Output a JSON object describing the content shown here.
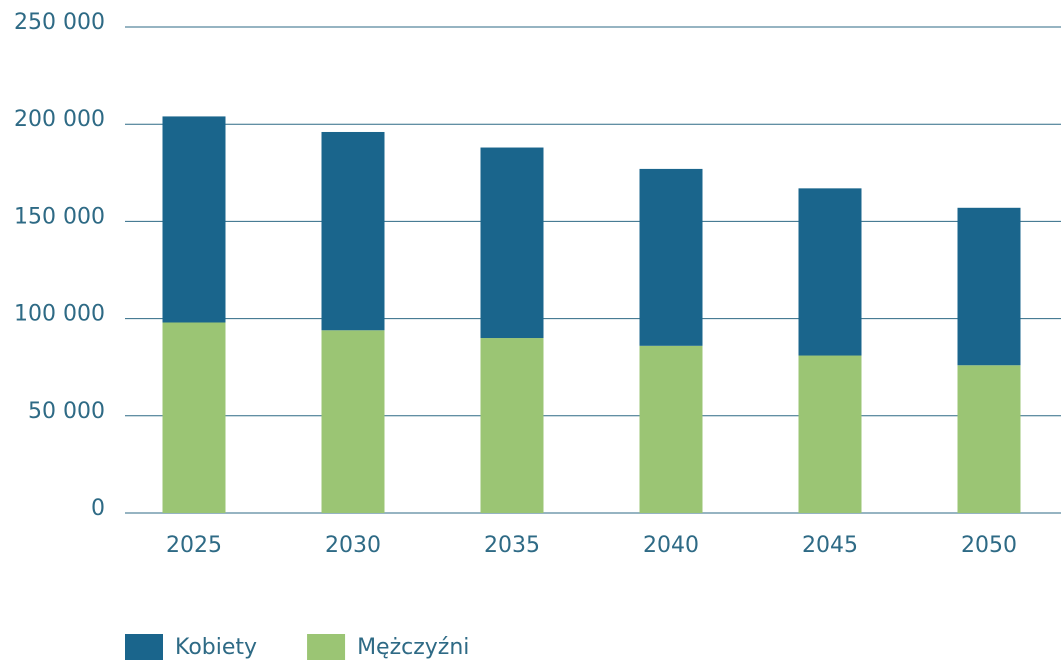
{
  "chart_data": {
    "type": "stacked_bar",
    "categories": [
      "2025",
      "2030",
      "2035",
      "2040",
      "2045",
      "2050"
    ],
    "series": [
      {
        "name": "Kobiety",
        "color": "#1a658c",
        "values": [
          106000,
          102000,
          98000,
          91000,
          86000,
          81000
        ]
      },
      {
        "name": "Mężczyźni",
        "color": "#9bc574",
        "values": [
          98000,
          94000,
          90000,
          86000,
          81000,
          76000
        ]
      }
    ],
    "stack_order": "last-series-at-bottom",
    "ylim": [
      0,
      250000
    ],
    "yticks": [
      0,
      {
        "value": 50000,
        "label": "50 000"
      },
      {
        "value": 100000,
        "label": "100 000"
      },
      {
        "value": 150000,
        "label": "150 000"
      },
      {
        "value": 200000,
        "label": "200 000"
      },
      {
        "value": 250000,
        "label": "250 000"
      }
    ],
    "grid": true,
    "legend": "bottom-left"
  }
}
